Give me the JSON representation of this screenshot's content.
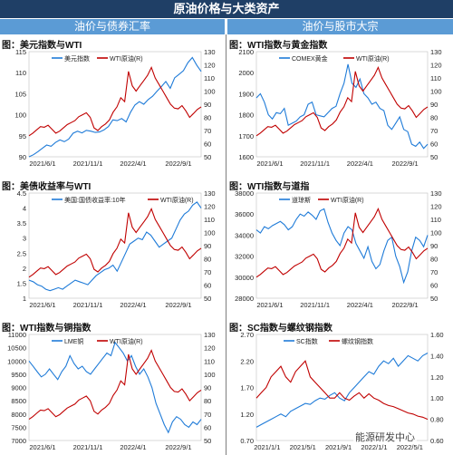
{
  "page": {
    "title": "原油价格与大类资产",
    "section_left": "油价与债券汇率",
    "section_right": "油价与股市大宗",
    "watermark": "能源研发中心"
  },
  "colors": {
    "blue": "#1f7bd8",
    "red": "#c00000",
    "header": "#1f3f66",
    "section": "#5b9bd5"
  },
  "chart_data": [
    {
      "id": "usd_wti",
      "type": "line",
      "title": "图：美元指数与WTI",
      "x_ticks": [
        "2021/6/1",
        "2021/11/1",
        "2022/4/1",
        "2022/9/1"
      ],
      "y_left": {
        "ticks": [
          "90",
          "95",
          "100",
          "105",
          "110",
          "115"
        ],
        "min": 90,
        "max": 115
      },
      "y_right": {
        "ticks": [
          "50",
          "60",
          "70",
          "80",
          "90",
          "100",
          "110",
          "120",
          "130"
        ],
        "min": 50,
        "max": 130
      },
      "series": [
        {
          "name": "美元指数",
          "axis": "left",
          "color": "#1f7bd8",
          "values": [
            90,
            90.5,
            91.2,
            92,
            92.8,
            92.5,
            93.4,
            94,
            93.6,
            94.2,
            95.6,
            96.1,
            95.7,
            96.3,
            96.1,
            95.8,
            95.9,
            96.4,
            97.2,
            98.8,
            98.6,
            99.1,
            98.3,
            100.6,
            102.3,
            103.1,
            102.5,
            103.6,
            104.4,
            105.6,
            106.7,
            107.9,
            106.3,
            108.8,
            109.6,
            110.5,
            112.4,
            113.6,
            111.8,
            110.3
          ]
        },
        {
          "name": "WTI原油(R)",
          "axis": "right",
          "color": "#c00000",
          "values": [
            66,
            68,
            70.5,
            73,
            72.5,
            74,
            71,
            68,
            69.5,
            72,
            74.5,
            76,
            77.5,
            80.5,
            82,
            83.5,
            80,
            72,
            70,
            73,
            75,
            78,
            84,
            88,
            95,
            92,
            115,
            104,
            100,
            104,
            108,
            112,
            118,
            110,
            105,
            100,
            95,
            90,
            87,
            86.5,
            89,
            85,
            80,
            83,
            86,
            88
          ]
        }
      ]
    },
    {
      "id": "wti_gold",
      "type": "line",
      "title": "图：WTI指数与黄金指数",
      "x_ticks": [
        "2021/6/1",
        "2021/11/1",
        "2022/4/1",
        "2022/9/1"
      ],
      "y_left": {
        "ticks": [
          "1600",
          "1700",
          "1800",
          "1900",
          "2000",
          "2100"
        ],
        "min": 1600,
        "max": 2100
      },
      "y_right": {
        "ticks": [
          "50",
          "60",
          "70",
          "80",
          "90",
          "100",
          "110",
          "120",
          "130"
        ],
        "min": 50,
        "max": 130
      },
      "series": [
        {
          "name": "COMEX黄金",
          "axis": "left",
          "color": "#1f7bd8",
          "values": [
            1880,
            1900,
            1860,
            1800,
            1780,
            1810,
            1805,
            1830,
            1750,
            1760,
            1770,
            1790,
            1800,
            1850,
            1860,
            1800,
            1795,
            1790,
            1810,
            1830,
            1840,
            1900,
            1950,
            2040,
            1950,
            1930,
            1970,
            1900,
            1880,
            1850,
            1860,
            1830,
            1820,
            1750,
            1730,
            1760,
            1790,
            1730,
            1720,
            1660,
            1650,
            1670,
            1640,
            1660
          ]
        },
        {
          "name": "WTI原油(R)",
          "axis": "right",
          "color": "#c00000",
          "values": [
            66,
            68,
            70.5,
            73,
            72.5,
            74,
            71,
            68,
            69.5,
            72,
            74.5,
            76,
            77.5,
            80.5,
            82,
            83.5,
            80,
            72,
            70,
            73,
            75,
            78,
            84,
            88,
            95,
            92,
            115,
            104,
            100,
            104,
            108,
            112,
            118,
            110,
            105,
            100,
            95,
            90,
            87,
            86.5,
            89,
            85,
            80,
            83,
            86,
            88
          ]
        }
      ]
    },
    {
      "id": "ust_wti",
      "type": "line",
      "title": "图：美债收益率与WTI",
      "x_ticks": [
        "2021/6/1",
        "2021/11/1",
        "2022/4/1",
        "2022/9/1"
      ],
      "y_left": {
        "ticks": [
          "1",
          "1.5",
          "2",
          "2.5",
          "3",
          "3.5",
          "4",
          "4.5"
        ],
        "min": 1,
        "max": 4.5
      },
      "y_right": {
        "ticks": [
          "50",
          "60",
          "70",
          "80",
          "90",
          "100",
          "110",
          "120",
          "130"
        ],
        "min": 50,
        "max": 130
      },
      "series": [
        {
          "name": "美国:国债收益率:10年",
          "axis": "left",
          "color": "#1f7bd8",
          "values": [
            1.6,
            1.55,
            1.45,
            1.4,
            1.3,
            1.25,
            1.3,
            1.35,
            1.3,
            1.4,
            1.5,
            1.6,
            1.55,
            1.5,
            1.45,
            1.6,
            1.75,
            1.85,
            1.95,
            2.0,
            2.1,
            1.9,
            2.2,
            2.5,
            2.8,
            2.9,
            3.0,
            2.95,
            3.2,
            3.1,
            2.9,
            2.7,
            2.8,
            2.9,
            3.0,
            3.3,
            3.6,
            3.8,
            3.9,
            4.1,
            4.2,
            4.0
          ]
        },
        {
          "name": "WTI原油(R)",
          "axis": "right",
          "color": "#c00000",
          "values": [
            66,
            68,
            70.5,
            73,
            72.5,
            74,
            71,
            68,
            69.5,
            72,
            74.5,
            76,
            77.5,
            80.5,
            82,
            83.5,
            80,
            72,
            70,
            73,
            75,
            78,
            84,
            88,
            95,
            92,
            115,
            104,
            100,
            104,
            108,
            112,
            118,
            110,
            105,
            100,
            95,
            90,
            87,
            86.5,
            89,
            85,
            80,
            83,
            86,
            88
          ]
        }
      ]
    },
    {
      "id": "wti_dow",
      "type": "line",
      "title": "图：WTI指数与道指",
      "x_ticks": [
        "2021/6/1",
        "2021/11/1",
        "2022/4/1",
        "2022/9/1"
      ],
      "y_left": {
        "ticks": [
          "28000",
          "30000",
          "32000",
          "34000",
          "36000",
          "38000"
        ],
        "min": 28000,
        "max": 38000
      },
      "y_right": {
        "ticks": [
          "50",
          "60",
          "70",
          "80",
          "90",
          "100",
          "110",
          "120",
          "130"
        ],
        "min": 50,
        "max": 130
      },
      "series": [
        {
          "name": "道琼斯",
          "axis": "left",
          "color": "#1f7bd8",
          "values": [
            34500,
            34200,
            34800,
            34600,
            34900,
            35100,
            35300,
            35000,
            34500,
            34800,
            35500,
            36000,
            35800,
            36200,
            35900,
            35500,
            36300,
            36500,
            35200,
            34200,
            33500,
            33000,
            34200,
            34800,
            34500,
            33200,
            32500,
            31800,
            32900,
            31500,
            30800,
            31200,
            32500,
            33500,
            33800,
            32000,
            31000,
            29500,
            30500,
            32500,
            33800,
            33500,
            32900,
            34000
          ]
        },
        {
          "name": "WTI原油(R)",
          "axis": "right",
          "color": "#c00000",
          "values": [
            66,
            68,
            70.5,
            73,
            72.5,
            74,
            71,
            68,
            69.5,
            72,
            74.5,
            76,
            77.5,
            80.5,
            82,
            83.5,
            80,
            72,
            70,
            73,
            75,
            78,
            84,
            88,
            95,
            92,
            115,
            104,
            100,
            104,
            108,
            112,
            118,
            110,
            105,
            100,
            95,
            90,
            87,
            86.5,
            89,
            85,
            80,
            83,
            86,
            88
          ]
        }
      ]
    },
    {
      "id": "wti_copper",
      "type": "line",
      "title": "图：WTI指数与铜指数",
      "x_ticks": [
        "2021/6/1",
        "2021/11/1",
        "2022/4/1",
        "2022/9/1"
      ],
      "y_left": {
        "ticks": [
          "7000",
          "7500",
          "8000",
          "8500",
          "9000",
          "9500",
          "10000",
          "10500",
          "11000"
        ],
        "min": 7000,
        "max": 11000
      },
      "y_right": {
        "ticks": [
          "50",
          "60",
          "70",
          "80",
          "90",
          "100",
          "110",
          "120",
          "130"
        ],
        "min": 50,
        "max": 130
      },
      "series": [
        {
          "name": "LME铜",
          "axis": "left",
          "color": "#1f7bd8",
          "values": [
            10000,
            9800,
            9600,
            9400,
            9500,
            9700,
            9500,
            9300,
            9600,
            9800,
            10200,
            9900,
            9700,
            9800,
            9600,
            9500,
            9700,
            9900,
            10100,
            10300,
            10200,
            10700,
            10500,
            10300,
            10000,
            10200,
            9800,
            9500,
            9700,
            9400,
            9000,
            8400,
            8000,
            7600,
            7300,
            7700,
            7900,
            7800,
            7600,
            7500,
            7700,
            7600,
            7800
          ]
        },
        {
          "name": "WTI原油(R)",
          "axis": "right",
          "color": "#c00000",
          "values": [
            66,
            68,
            70.5,
            73,
            72.5,
            74,
            71,
            68,
            69.5,
            72,
            74.5,
            76,
            77.5,
            80.5,
            82,
            83.5,
            80,
            72,
            70,
            73,
            75,
            78,
            84,
            88,
            95,
            92,
            115,
            104,
            100,
            104,
            108,
            112,
            118,
            110,
            105,
            100,
            95,
            90,
            87,
            86.5,
            89,
            85,
            80,
            83,
            86,
            88
          ]
        }
      ]
    },
    {
      "id": "sc_rebar",
      "type": "line",
      "title": "图：SC指数与螺纹钢指数",
      "x_ticks": [
        "2021/1/1",
        "2021/5/1",
        "2021/9/1",
        "2022/1/1",
        "2022/5/1"
      ],
      "legend_position": "top-left",
      "y_left": {
        "ticks": [
          "0.70",
          "1.20",
          "1.70",
          "2.20",
          "2.70"
        ],
        "min": 0.7,
        "max": 2.7
      },
      "y_right": {
        "ticks": [
          "0.60",
          "0.80",
          "1.00",
          "1.20",
          "1.40",
          "1.60"
        ],
        "min": 0.6,
        "max": 1.6
      },
      "series": [
        {
          "name": "SC指数",
          "axis": "left",
          "color": "#1f7bd8",
          "values": [
            0.95,
            1.0,
            1.05,
            1.1,
            1.15,
            1.2,
            1.15,
            1.25,
            1.3,
            1.35,
            1.4,
            1.38,
            1.45,
            1.5,
            1.48,
            1.55,
            1.6,
            1.5,
            1.45,
            1.6,
            1.7,
            1.8,
            1.9,
            2.0,
            1.95,
            2.1,
            2.2,
            2.15,
            2.25,
            2.1,
            2.2,
            2.3,
            2.25,
            2.2,
            2.3,
            2.35
          ]
        },
        {
          "name": "螺纹钢指数",
          "axis": "right",
          "color": "#c00000",
          "values": [
            1.0,
            1.05,
            1.1,
            1.2,
            1.25,
            1.3,
            1.2,
            1.15,
            1.25,
            1.3,
            1.35,
            1.2,
            1.15,
            1.1,
            1.05,
            1.0,
            1.0,
            1.05,
            1.0,
            0.98,
            1.02,
            1.05,
            1.0,
            1.04,
            1.0,
            0.98,
            0.95,
            0.93,
            0.92,
            0.9,
            0.88,
            0.86,
            0.85,
            0.83,
            0.82,
            0.8
          ]
        }
      ]
    }
  ]
}
